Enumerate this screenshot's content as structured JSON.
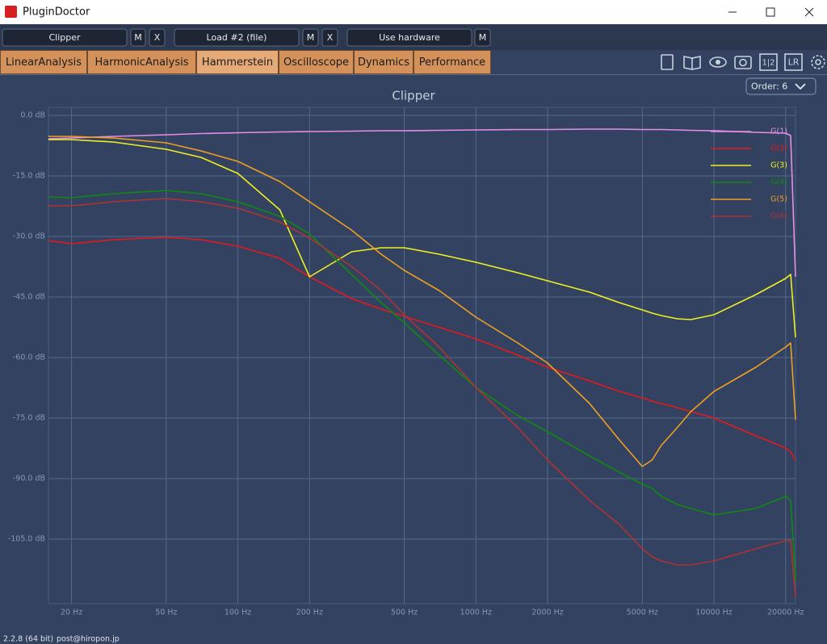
{
  "window": {
    "title": "PluginDoctor"
  },
  "toolbar": {
    "plugin": "Clipper",
    "plugin_buttons": [
      "M",
      "X"
    ],
    "load": "Load #2 (file)",
    "load_buttons": [
      "M",
      "X"
    ],
    "hardware": "Use hardware",
    "hardware_buttons": [
      "M"
    ]
  },
  "tabs": [
    {
      "label": "LinearAnalysis",
      "active": false
    },
    {
      "label": "HarmonicAnalysis",
      "active": false
    },
    {
      "label": "Hammerstein",
      "active": true
    },
    {
      "label": "Oscilloscope",
      "active": false
    },
    {
      "label": "Dynamics",
      "active": false
    },
    {
      "label": "Performance",
      "active": false
    }
  ],
  "tool_icons": [
    "1|2",
    "LR"
  ],
  "order": "Order: 6",
  "chart_data": {
    "type": "line",
    "title": "Clipper",
    "log_x": true,
    "grid": true,
    "legend": "top-right",
    "xlim": [
      16,
      22000
    ],
    "ylim": [
      -121,
      2
    ],
    "xticks": [
      {
        "value": 20,
        "label": "20 Hz"
      },
      {
        "value": 50,
        "label": "50 Hz"
      },
      {
        "value": 100,
        "label": "100 Hz"
      },
      {
        "value": 200,
        "label": "200 Hz"
      },
      {
        "value": 500,
        "label": "500 Hz"
      },
      {
        "value": 1000,
        "label": "1000 Hz"
      },
      {
        "value": 2000,
        "label": "2000 Hz"
      },
      {
        "value": 5000,
        "label": "5000 Hz"
      },
      {
        "value": 10000,
        "label": "10000 Hz"
      },
      {
        "value": 20000,
        "label": "20000 Hz"
      }
    ],
    "yticks": [
      {
        "value": 0,
        "label": "0.0 dB"
      },
      {
        "value": -15,
        "label": "-15.0 dB"
      },
      {
        "value": -30,
        "label": "-30.0 dB"
      },
      {
        "value": -45,
        "label": "-45.0 dB"
      },
      {
        "value": -60,
        "label": "-60.0 dB"
      },
      {
        "value": -75,
        "label": "-75.0 dB"
      },
      {
        "value": -90,
        "label": "-90.0 dB"
      },
      {
        "value": -105,
        "label": "-105.0 dB"
      }
    ],
    "x": [
      16,
      20,
      30,
      50,
      70,
      100,
      150,
      200,
      300,
      400,
      500,
      700,
      1000,
      1500,
      2000,
      3000,
      4000,
      5000,
      5500,
      6000,
      7000,
      8000,
      10000,
      15000,
      20000,
      21000,
      22000
    ],
    "series": [
      {
        "name": "G(1)",
        "color": "#e58ee8",
        "values": [
          -5.8,
          -5.6,
          -5.2,
          -4.8,
          -4.5,
          -4.3,
          -4.1,
          -4.0,
          -3.9,
          -3.8,
          -3.8,
          -3.7,
          -3.6,
          -3.5,
          -3.5,
          -3.4,
          -3.4,
          -3.5,
          -3.5,
          -3.5,
          -3.6,
          -3.7,
          -3.8,
          -4.2,
          -4.4,
          -5,
          -40
        ]
      },
      {
        "name": "G(2)",
        "color": "#e8181c",
        "values": [
          -31,
          -31.8,
          -30.8,
          -30.2,
          -30.8,
          -32.4,
          -35.4,
          -40,
          -45.4,
          -48,
          -49.8,
          -52.5,
          -55.4,
          -59.4,
          -62.4,
          -65.8,
          -68.4,
          -70,
          -70.8,
          -71.4,
          -72.4,
          -73.4,
          -75,
          -79.4,
          -82.4,
          -83.4,
          -85.4
        ]
      },
      {
        "name": "G(3)",
        "color": "#f0f020",
        "values": [
          -6,
          -6,
          -6.6,
          -8.4,
          -10.4,
          -14.4,
          -23.4,
          -40,
          -33.8,
          -32.8,
          -32.8,
          -34.4,
          -36.4,
          -39,
          -41,
          -43.8,
          -46.4,
          -48.2,
          -49,
          -49.6,
          -50.4,
          -50.6,
          -49.4,
          -44.4,
          -40.4,
          -39.4,
          -55
        ]
      },
      {
        "name": "G(4)",
        "color": "#108a10",
        "values": [
          -20.2,
          -20.4,
          -19.4,
          -18.6,
          -19.4,
          -21.4,
          -25,
          -29.4,
          -39.4,
          -46.4,
          -51.4,
          -59.4,
          -67.4,
          -74.4,
          -78.4,
          -84.4,
          -88.4,
          -91.4,
          -92.4,
          -94.4,
          -96.4,
          -97.4,
          -99,
          -97.4,
          -94.4,
          -95.4,
          -115.4
        ]
      },
      {
        "name": "G(5)",
        "color": "#f0a020",
        "values": [
          -5.2,
          -5.2,
          -5.6,
          -6.8,
          -8.8,
          -11.4,
          -16.4,
          -21.4,
          -28.4,
          -34.4,
          -38.4,
          -43.4,
          -50,
          -56.4,
          -61.4,
          -71.4,
          -80.4,
          -87,
          -85.4,
          -81.8,
          -77.4,
          -73.4,
          -68.4,
          -62.4,
          -57.4,
          -56.4,
          -75.4
        ]
      },
      {
        "name": "G(6)",
        "color": "#b03234",
        "values": [
          -22.4,
          -22.4,
          -21.4,
          -20.6,
          -21.4,
          -23,
          -26.4,
          -30.4,
          -37.4,
          -43.4,
          -49.4,
          -57.4,
          -67.4,
          -77.4,
          -85.4,
          -95.4,
          -101.4,
          -107.4,
          -109.4,
          -110.4,
          -111.4,
          -111.4,
          -110.4,
          -107.4,
          -105.4,
          -105.4,
          -119.4
        ]
      }
    ]
  },
  "footer": {
    "version": "2.2.8 (64 bit)",
    "contact": "post@hiropon.jp"
  }
}
